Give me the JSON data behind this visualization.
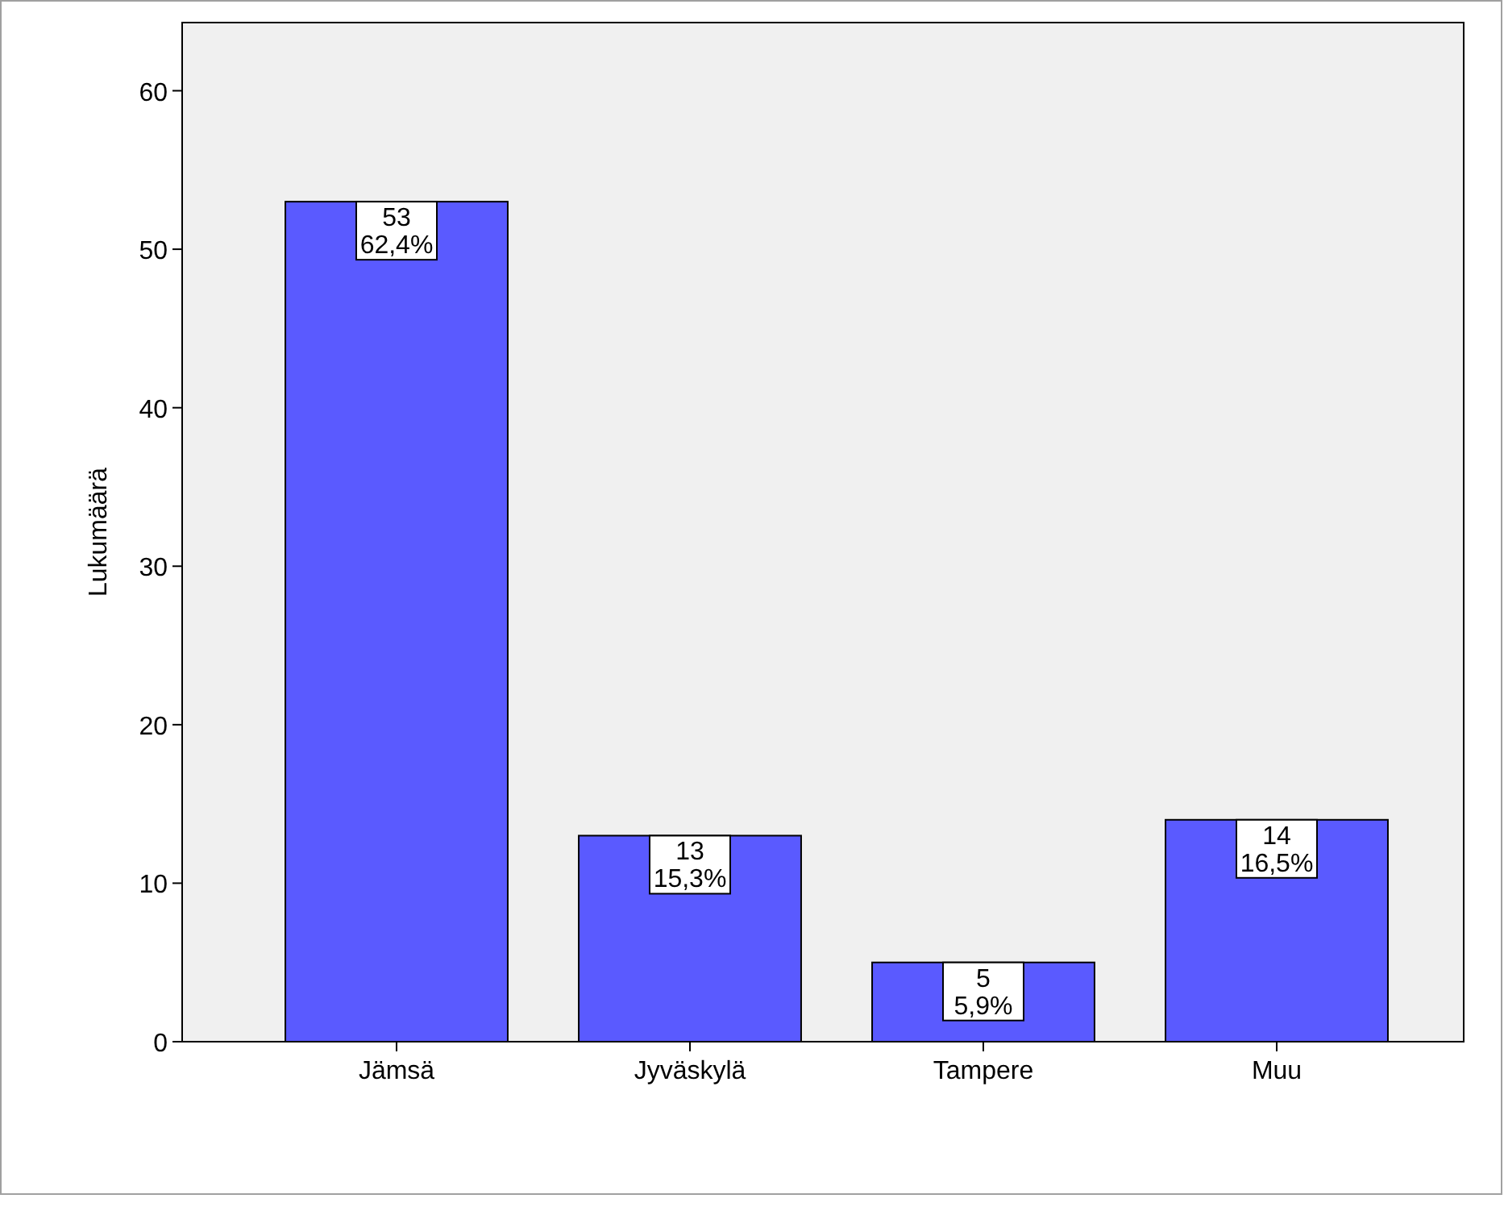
{
  "chart_data": {
    "type": "bar",
    "ylabel": "Lukumäärä",
    "categories": [
      "Jämsä",
      "Jyväskylä",
      "Tampere",
      "Muu"
    ],
    "values": [
      53,
      13,
      5,
      14
    ],
    "color": "#5a5aff",
    "value_labels": [
      "53\n62,4%",
      "13\n15,3%",
      "5\n5,9%",
      "14\n16,5%"
    ],
    "ylim": [
      0,
      64.3
    ],
    "yticks": [
      0,
      10,
      20,
      30,
      40,
      50,
      60
    ]
  }
}
